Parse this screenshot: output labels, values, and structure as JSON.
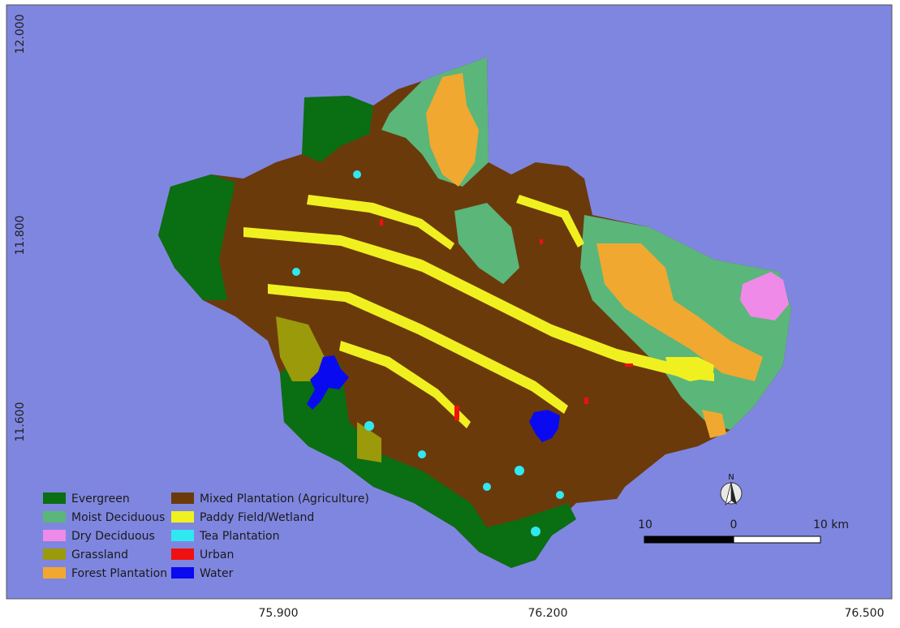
{
  "map": {
    "background_color": "#7f86e0",
    "lat_ticks": [
      "12.000",
      "11.800",
      "11.600"
    ],
    "lon_ticks": [
      "75.900",
      "76.200",
      "76.500"
    ]
  },
  "legend": {
    "col1": [
      {
        "label": "Evergreen",
        "color": "#0a6e12"
      },
      {
        "label": "Moist Deciduous",
        "color": "#5bb67a"
      },
      {
        "label": "Dry Deciduous",
        "color": "#f08ae8"
      },
      {
        "label": "Grassland",
        "color": "#9a9a0a"
      },
      {
        "label": "Forest Plantation",
        "color": "#f0a830"
      }
    ],
    "col2": [
      {
        "label": "Mixed Plantation (Agriculture)",
        "color": "#6b3a0b"
      },
      {
        "label": "Paddy Field/Wetland",
        "color": "#f0f020"
      },
      {
        "label": "Tea Plantation",
        "color": "#30e8f0"
      },
      {
        "label": "Urban",
        "color": "#f01010"
      },
      {
        "label": "Water",
        "color": "#0a0af0"
      }
    ]
  },
  "north_arrow": {
    "label": "N"
  },
  "scale_bar": {
    "left": "10",
    "mid": "0",
    "right": "10 km"
  }
}
